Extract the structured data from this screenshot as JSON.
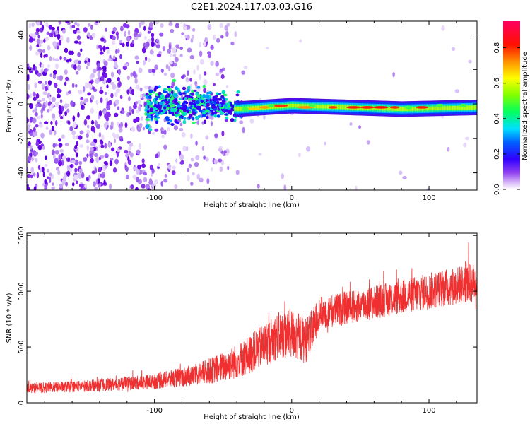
{
  "title": "C2E1.2024.117.03.03.G16",
  "chart_data": [
    {
      "type": "heatmap",
      "xlabel": "Height of straight line (km)",
      "ylabel": "Frequency (Hz)",
      "xlim": [
        -193,
        135
      ],
      "ylim": [
        -50,
        48
      ],
      "xticks": [
        -100,
        0,
        100
      ],
      "xtick_labels": [
        "-100",
        "0",
        "100"
      ],
      "yticks": [
        40,
        20,
        0,
        -20,
        -40
      ],
      "ytick_labels": [
        "40",
        "20",
        "0",
        "-20",
        "-40"
      ],
      "ridge": {
        "description_points": [
          {
            "x": -100,
            "freq": 0
          },
          {
            "x": -60,
            "freq": 0
          },
          {
            "x": -40,
            "freq": -3
          },
          {
            "x": -20,
            "freq": -2
          },
          {
            "x": 0,
            "freq": -1
          },
          {
            "x": 40,
            "freq": -2
          },
          {
            "x": 80,
            "freq": -3
          },
          {
            "x": 135,
            "freq": -2
          }
        ]
      },
      "colorbar": {
        "label": "Normalized spectral amplitude",
        "ticks": [
          0.0,
          0.2,
          0.4,
          0.6,
          0.8
        ],
        "tick_labels": [
          "0.0",
          "0.2",
          "0.4",
          "0.6",
          "0.8"
        ],
        "range": [
          0.0,
          0.95
        ],
        "colors": [
          "#ffffff",
          "#b070f0",
          "#5000e0",
          "#0000ff",
          "#00c0ff",
          "#00ff60",
          "#a0ff00",
          "#ffff00",
          "#ff8000",
          "#ff0000",
          "#ff0060"
        ]
      }
    },
    {
      "type": "line",
      "xlabel": "Height of straight line (km)",
      "ylabel": "SNR (10 * v/v)",
      "xlim": [
        -193,
        135
      ],
      "ylim": [
        0,
        1520
      ],
      "xticks": [
        -100,
        0,
        100
      ],
      "xtick_labels": [
        "-100",
        "0",
        "100"
      ],
      "yticks": [
        0,
        500,
        1000,
        1500
      ],
      "ytick_labels": [
        "0",
        "500",
        "1000",
        "1500"
      ],
      "color": "#f03030",
      "series": [
        {
          "x": [
            -193,
            -150,
            -100,
            -70,
            -50,
            -35,
            -20,
            -10,
            0,
            10,
            15,
            20,
            40,
            60,
            80,
            100,
            120,
            135
          ],
          "mean": [
            130,
            150,
            190,
            250,
            320,
            400,
            520,
            600,
            620,
            560,
            650,
            800,
            850,
            900,
            950,
            1000,
            1050,
            1080
          ],
          "spread": [
            60,
            70,
            90,
            130,
            180,
            220,
            260,
            280,
            300,
            280,
            250,
            200,
            200,
            200,
            210,
            220,
            230,
            240
          ]
        }
      ]
    }
  ]
}
